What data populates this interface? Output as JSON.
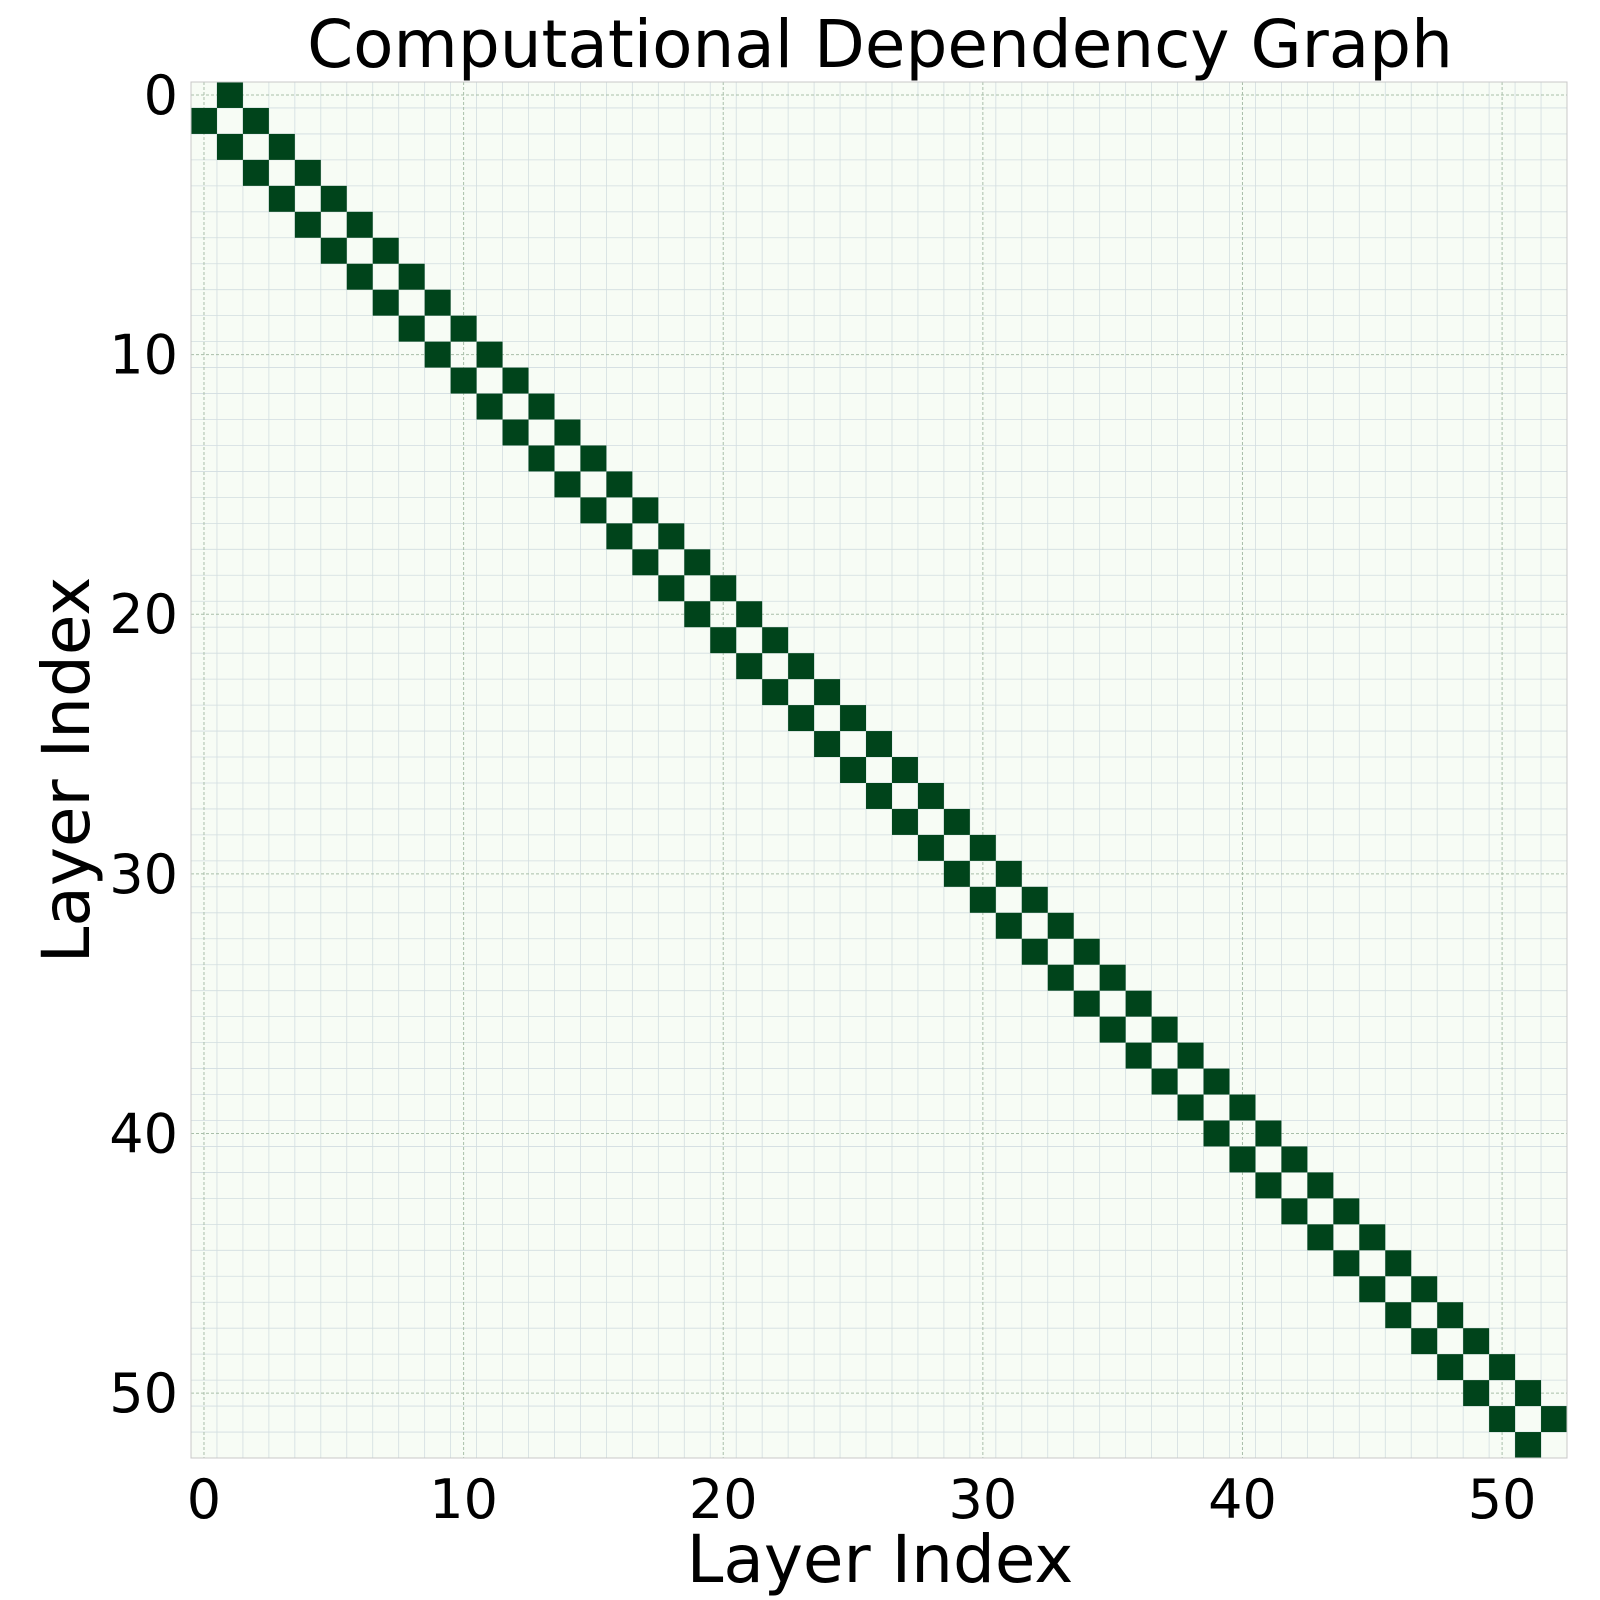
{
  "chart_data": {
    "type": "heatmap",
    "title": "Computational Dependency Graph",
    "xlabel": "Layer Index",
    "ylabel": "Layer Index",
    "n": 53,
    "xlim": [
      -0.5,
      52.5
    ],
    "ylim": [
      52.5,
      -0.5
    ],
    "x_ticks": [
      0,
      10,
      20,
      30,
      40,
      50
    ],
    "y_ticks": [
      0,
      10,
      20,
      30,
      40,
      50
    ],
    "x_tick_labels": [
      "0",
      "10",
      "20",
      "30",
      "40",
      "50"
    ],
    "y_tick_labels": [
      "0",
      "10",
      "20",
      "30",
      "40",
      "50"
    ],
    "grid": true,
    "background_color": "#f7fcf5",
    "cell_color": "#00441b",
    "cells": [
      [
        0,
        1
      ],
      [
        1,
        0
      ],
      [
        1,
        2
      ],
      [
        2,
        1
      ],
      [
        2,
        3
      ],
      [
        3,
        2
      ],
      [
        3,
        4
      ],
      [
        4,
        3
      ],
      [
        4,
        5
      ],
      [
        5,
        4
      ],
      [
        5,
        6
      ],
      [
        6,
        5
      ],
      [
        6,
        7
      ],
      [
        7,
        6
      ],
      [
        7,
        8
      ],
      [
        8,
        7
      ],
      [
        8,
        9
      ],
      [
        9,
        8
      ],
      [
        9,
        10
      ],
      [
        10,
        9
      ],
      [
        10,
        11
      ],
      [
        11,
        10
      ],
      [
        11,
        12
      ],
      [
        12,
        11
      ],
      [
        12,
        13
      ],
      [
        13,
        12
      ],
      [
        13,
        14
      ],
      [
        14,
        13
      ],
      [
        14,
        15
      ],
      [
        15,
        14
      ],
      [
        15,
        16
      ],
      [
        16,
        15
      ],
      [
        16,
        17
      ],
      [
        17,
        16
      ],
      [
        17,
        18
      ],
      [
        18,
        17
      ],
      [
        18,
        19
      ],
      [
        19,
        18
      ],
      [
        19,
        20
      ],
      [
        20,
        19
      ],
      [
        20,
        21
      ],
      [
        21,
        20
      ],
      [
        21,
        22
      ],
      [
        22,
        21
      ],
      [
        22,
        23
      ],
      [
        23,
        22
      ],
      [
        23,
        24
      ],
      [
        24,
        23
      ],
      [
        24,
        25
      ],
      [
        25,
        24
      ],
      [
        25,
        26
      ],
      [
        26,
        25
      ],
      [
        26,
        27
      ],
      [
        27,
        26
      ],
      [
        27,
        28
      ],
      [
        28,
        27
      ],
      [
        28,
        29
      ],
      [
        29,
        28
      ],
      [
        29,
        30
      ],
      [
        30,
        29
      ],
      [
        30,
        31
      ],
      [
        31,
        30
      ],
      [
        31,
        32
      ],
      [
        32,
        31
      ],
      [
        32,
        33
      ],
      [
        33,
        32
      ],
      [
        33,
        34
      ],
      [
        34,
        33
      ],
      [
        34,
        35
      ],
      [
        35,
        34
      ],
      [
        35,
        36
      ],
      [
        36,
        35
      ],
      [
        36,
        37
      ],
      [
        37,
        36
      ],
      [
        37,
        38
      ],
      [
        38,
        37
      ],
      [
        38,
        39
      ],
      [
        39,
        38
      ],
      [
        39,
        40
      ],
      [
        40,
        39
      ],
      [
        40,
        41
      ],
      [
        41,
        40
      ],
      [
        41,
        42
      ],
      [
        42,
        41
      ],
      [
        42,
        43
      ],
      [
        43,
        42
      ],
      [
        43,
        44
      ],
      [
        44,
        43
      ],
      [
        44,
        45
      ],
      [
        45,
        44
      ],
      [
        45,
        46
      ],
      [
        46,
        45
      ],
      [
        46,
        47
      ],
      [
        47,
        46
      ],
      [
        47,
        48
      ],
      [
        48,
        47
      ],
      [
        48,
        49
      ],
      [
        49,
        48
      ],
      [
        49,
        50
      ],
      [
        50,
        49
      ],
      [
        50,
        51
      ],
      [
        51,
        50
      ],
      [
        51,
        52
      ],
      [
        52,
        51
      ]
    ]
  }
}
